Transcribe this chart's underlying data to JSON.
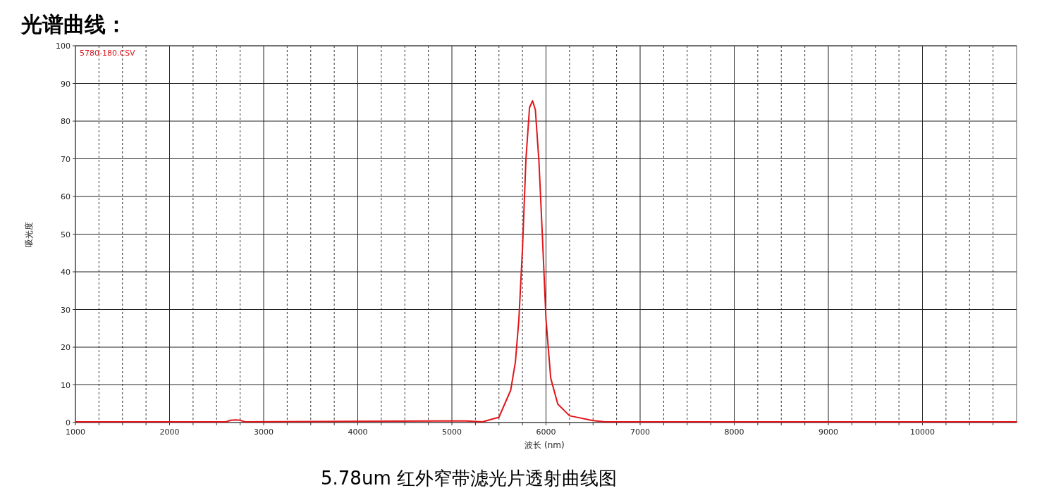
{
  "chart_data": {
    "type": "line",
    "title": "光谱曲线：",
    "xlabel": "波长 (nm)",
    "ylabel": "吸光度",
    "annotations": [
      "5.78um 红外窄带滤光片透射曲线图"
    ],
    "series": [
      {
        "name": "5780-180.CSV",
        "color": "#e0161b",
        "x": [
          1000,
          2600,
          2650,
          2700,
          2750,
          2800,
          4850,
          5000,
          5150,
          5325,
          5500,
          5625,
          5675,
          5712,
          5750,
          5787,
          5825,
          5857,
          5887,
          5925,
          5962,
          6000,
          6050,
          6125,
          6250,
          6500,
          6625,
          11000
        ],
        "values": [
          0.2,
          0.2,
          0.6,
          0.7,
          0.6,
          0.2,
          0.4,
          0.4,
          0.4,
          0.2,
          1.4,
          8.6,
          16.1,
          27.4,
          46.1,
          69.9,
          83.6,
          85.4,
          83,
          69.3,
          49.3,
          27.4,
          11.8,
          4.9,
          1.8,
          0.5,
          0.2,
          0.2
        ]
      }
    ],
    "xlim": [
      1000,
      11000
    ],
    "ylim": [
      0,
      100
    ],
    "xticks": [
      1000,
      {
        "value": 1250,
        "label": null
      },
      {
        "value": 1500,
        "label": null
      },
      {
        "value": 1750,
        "label": null
      },
      2000,
      {
        "value": 2250,
        "label": null
      },
      {
        "value": 2500,
        "label": null
      },
      {
        "value": 2750,
        "label": null
      },
      3000,
      {
        "value": 3250,
        "label": null
      },
      {
        "value": 3500,
        "label": null
      },
      {
        "value": 3750,
        "label": null
      },
      4000,
      {
        "value": 4250,
        "label": null
      },
      {
        "value": 4500,
        "label": null
      },
      {
        "value": 4750,
        "label": null
      },
      5000,
      {
        "value": 5250,
        "label": null
      },
      {
        "value": 5500,
        "label": null
      },
      {
        "value": 5750,
        "label": null
      },
      6000,
      {
        "value": 6250,
        "label": null
      },
      {
        "value": 6500,
        "label": null
      },
      {
        "value": 6750,
        "label": null
      },
      7000,
      {
        "value": 7250,
        "label": null
      },
      {
        "value": 7500,
        "label": null
      },
      {
        "value": 7750,
        "label": null
      },
      8000,
      {
        "value": 8250,
        "label": null
      },
      {
        "value": 8500,
        "label": null
      },
      {
        "value": 8750,
        "label": null
      },
      9000,
      {
        "value": 9250,
        "label": null
      },
      {
        "value": 9500,
        "label": null
      },
      {
        "value": 9750,
        "label": null
      },
      10000,
      {
        "value": 10250,
        "label": null
      },
      {
        "value": 10500,
        "label": null
      },
      {
        "value": 10750,
        "label": null
      }
    ],
    "yticks": [
      0,
      10,
      20,
      30,
      40,
      50,
      60,
      70,
      80,
      90,
      100
    ],
    "grid": true,
    "legend": "top left",
    "marker": "none",
    "line_style": "solid"
  }
}
